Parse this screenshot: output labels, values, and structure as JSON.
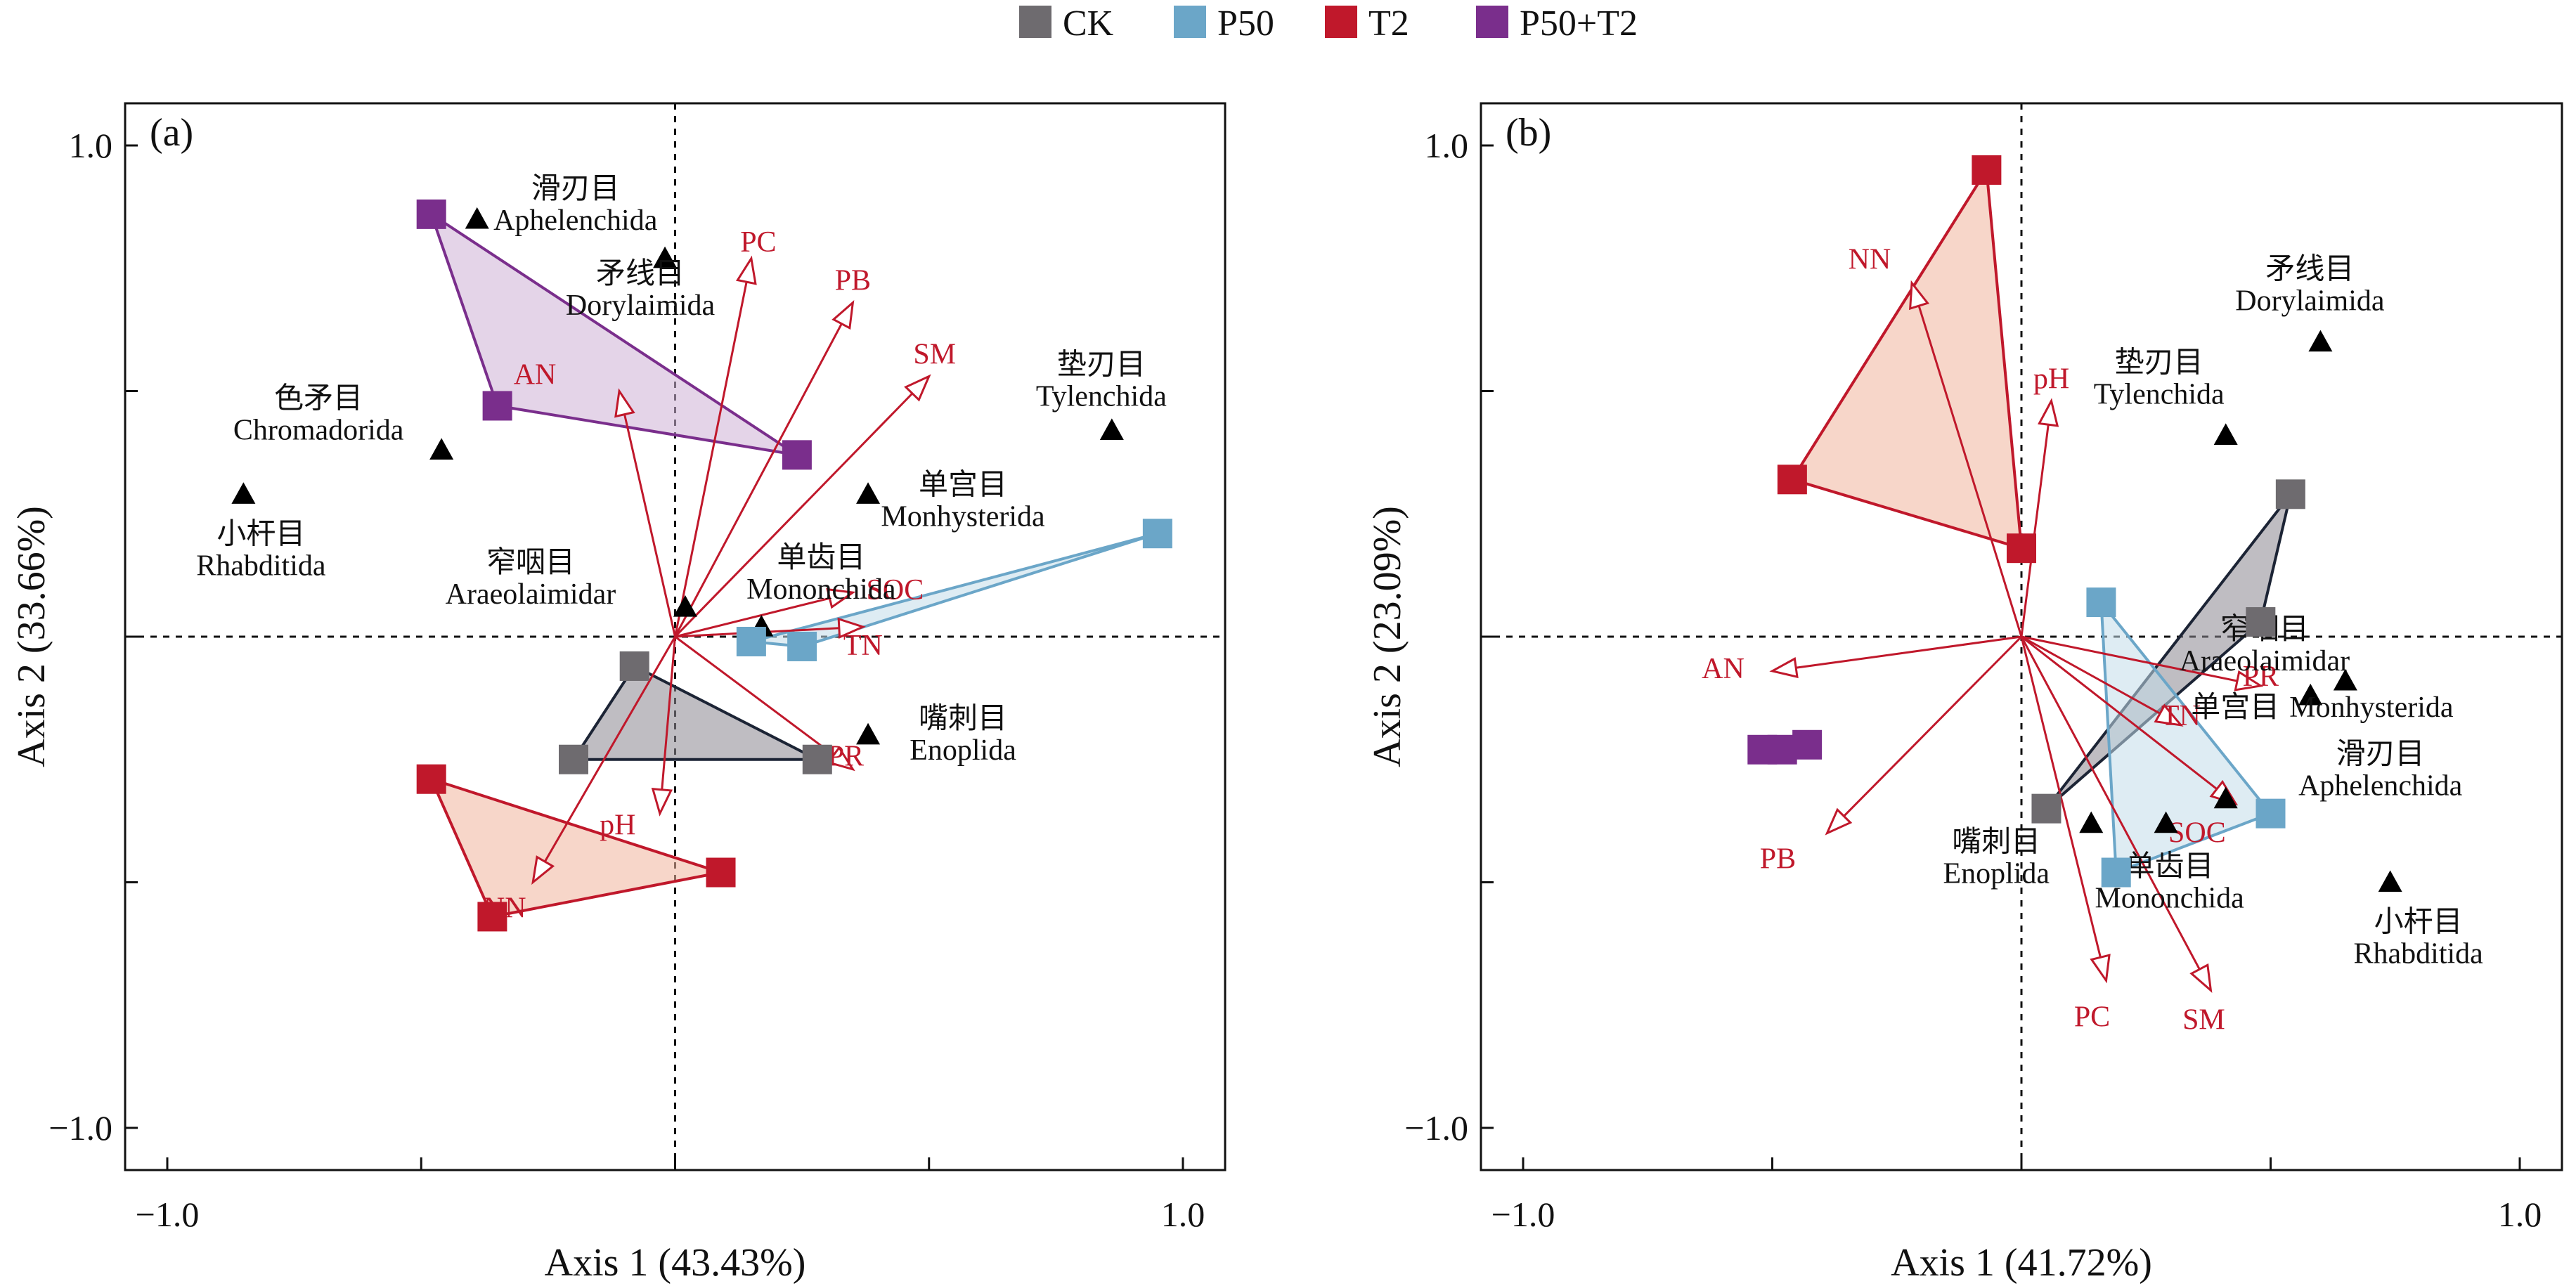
{
  "legend": [
    {
      "name": "CK",
      "color": "#6e6b6f"
    },
    {
      "name": "P50",
      "color": "#6ba6c8"
    },
    {
      "name": "T2",
      "color": "#c0182b"
    },
    {
      "name": "P50+T2",
      "color": "#7a2e8c"
    }
  ],
  "colors": {
    "hull_fill": {
      "CK": "#8a8790",
      "P50": "#c3dcea",
      "T2": "#f0b49c",
      "P50+T2": "#cdb0d6"
    },
    "hull_stroke": {
      "CK": "#1c2435",
      "P50": "#6ba6c8",
      "T2": "#c0182b",
      "P50+T2": "#7a2e8c"
    },
    "arrow": "#c0182b",
    "taxon": "#000000"
  },
  "chart_data": [
    {
      "type": "scatter",
      "panel_label": "(a)",
      "xlabel": "Axis 1 (43.43%)",
      "ylabel": "Axis 2 (33.66%)",
      "xlim": [
        -1.0,
        1.0
      ],
      "ylim": [
        -1.0,
        1.0
      ],
      "x_ticks": [
        "−1.0",
        "1.0"
      ],
      "y_ticks": [
        "1.0",
        "−1.0"
      ],
      "origin_dashed_lines": true,
      "groups": [
        {
          "name": "CK",
          "points": [
            [
              -0.08,
              -0.06
            ],
            [
              -0.2,
              -0.25
            ],
            [
              0.28,
              -0.25
            ]
          ]
        },
        {
          "name": "P50",
          "points": [
            [
              0.95,
              0.21
            ],
            [
              0.15,
              -0.01
            ],
            [
              0.25,
              -0.02
            ]
          ]
        },
        {
          "name": "T2",
          "points": [
            [
              -0.48,
              -0.29
            ],
            [
              -0.36,
              -0.57
            ],
            [
              0.09,
              -0.48
            ]
          ]
        },
        {
          "name": "P50+T2",
          "points": [
            [
              -0.48,
              0.86
            ],
            [
              -0.35,
              0.47
            ],
            [
              0.24,
              0.37
            ]
          ]
        }
      ],
      "arrows": [
        {
          "name": "PC",
          "x": 0.15,
          "y": 0.77
        },
        {
          "name": "PB",
          "x": 0.35,
          "y": 0.68
        },
        {
          "name": "SM",
          "x": 0.5,
          "y": 0.53
        },
        {
          "name": "AN",
          "x": -0.11,
          "y": 0.5
        },
        {
          "name": "SOC",
          "x": 0.35,
          "y": 0.09
        },
        {
          "name": "TN",
          "x": 0.37,
          "y": 0.02
        },
        {
          "name": "PR",
          "x": 0.35,
          "y": -0.27
        },
        {
          "name": "pH",
          "x": -0.03,
          "y": -0.36
        },
        {
          "name": "NN",
          "x": -0.28,
          "y": -0.5
        }
      ],
      "taxa": [
        {
          "cn": "滑刃目",
          "en": "Aphelenchida",
          "x": -0.39,
          "y": 0.85
        },
        {
          "cn": "矛线目",
          "en": "Dorylaimida",
          "x": -0.02,
          "y": 0.77
        },
        {
          "cn": "色矛目",
          "en": "Chromadorida",
          "x": -0.46,
          "y": 0.38
        },
        {
          "cn": "垫刃目",
          "en": "Tylenchida",
          "x": 0.86,
          "y": 0.42
        },
        {
          "cn": "单宫目",
          "en": "Monhysterida",
          "x": 0.38,
          "y": 0.29
        },
        {
          "cn": "小杆目",
          "en": "Rhabditida",
          "x": -0.85,
          "y": 0.29
        },
        {
          "cn": "窄咽目",
          "en": "Araeolaimidar",
          "x": 0.02,
          "y": 0.06
        },
        {
          "cn": "单齿目",
          "en": "Mononchida",
          "x": 0.17,
          "y": 0.02
        },
        {
          "cn": "嘴刺目",
          "en": "Enoplida",
          "x": 0.38,
          "y": -0.2
        }
      ]
    },
    {
      "type": "scatter",
      "panel_label": "(b)",
      "xlabel": "Axis 1 (41.72%)",
      "ylabel": "Axis 2 (23.09%)",
      "xlim": [
        -1.0,
        1.0
      ],
      "ylim": [
        -1.0,
        1.0
      ],
      "x_ticks": [
        "−1.0",
        "1.0"
      ],
      "y_ticks": [
        "1.0",
        "−1.0"
      ],
      "origin_dashed_lines": true,
      "groups": [
        {
          "name": "CK",
          "points": [
            [
              0.54,
              0.29
            ],
            [
              0.48,
              0.03
            ],
            [
              0.05,
              -0.35
            ]
          ]
        },
        {
          "name": "P50",
          "points": [
            [
              0.16,
              0.07
            ],
            [
              0.5,
              -0.36
            ],
            [
              0.19,
              -0.48
            ]
          ]
        },
        {
          "name": "T2",
          "points": [
            [
              -0.07,
              0.95
            ],
            [
              -0.46,
              0.32
            ],
            [
              0.0,
              0.18
            ]
          ]
        },
        {
          "name": "P50+T2",
          "points": [
            [
              -0.52,
              -0.23
            ],
            [
              -0.48,
              -0.23
            ],
            [
              -0.43,
              -0.22
            ]
          ]
        }
      ],
      "arrows": [
        {
          "name": "NN",
          "x": -0.22,
          "y": 0.72
        },
        {
          "name": "pH",
          "x": 0.06,
          "y": 0.48
        },
        {
          "name": "AN",
          "x": -0.5,
          "y": -0.07
        },
        {
          "name": "PB",
          "x": -0.39,
          "y": -0.4
        },
        {
          "name": "PR",
          "x": 0.48,
          "y": -0.1
        },
        {
          "name": "TN",
          "x": 0.32,
          "y": -0.18
        },
        {
          "name": "SOC",
          "x": 0.43,
          "y": -0.34
        },
        {
          "name": "PC",
          "x": 0.17,
          "y": -0.7
        },
        {
          "name": "SM",
          "x": 0.38,
          "y": -0.72
        }
      ],
      "taxa": [
        {
          "cn": "矛线目",
          "en": "Dorylaimida",
          "x": 0.6,
          "y": 0.6
        },
        {
          "cn": "垫刃目",
          "en": "Tylenchida",
          "x": 0.41,
          "y": 0.41
        },
        {
          "cn": "窄咽目",
          "en": "Araeolaimidar",
          "x": 0.65,
          "y": -0.09
        },
        {
          "cn": "单宫目",
          "en": "Monhysterida",
          "x": 0.58,
          "y": -0.12
        },
        {
          "cn": "滑刃目",
          "en": "Aphelenchida",
          "x": 0.41,
          "y": -0.33
        },
        {
          "cn": "单齿目",
          "en": "Mononchida",
          "x": 0.29,
          "y": -0.38
        },
        {
          "cn": "嘴刺目",
          "en": "Enoplida",
          "x": 0.14,
          "y": -0.38
        },
        {
          "cn": "小杆目",
          "en": "Rhabditida",
          "x": 0.74,
          "y": -0.5
        }
      ]
    }
  ]
}
